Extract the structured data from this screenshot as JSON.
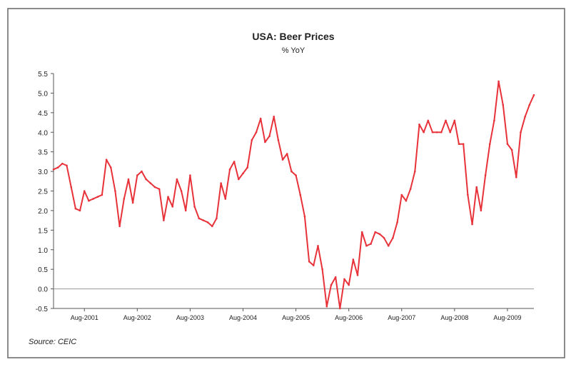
{
  "chart_data": {
    "type": "line",
    "title": "USA: Beer Prices",
    "subtitle": "% YoY",
    "source": "Source: CEIC",
    "ylim": [
      -0.5,
      5.5
    ],
    "y_ticks": [
      "5.5",
      "5.0",
      "4.5",
      "4.0",
      "3.5",
      "3.0",
      "2.5",
      "2.0",
      "1.5",
      "1.0",
      "0.5",
      "0.0",
      "-0.5"
    ],
    "x_ticks": [
      "Aug-2001",
      "Aug-2002",
      "Aug-2003",
      "Aug-2004",
      "Aug-2005",
      "Aug-2006",
      "Aug-2007",
      "Aug-2008",
      "Aug-2009"
    ],
    "x_start": "Jan-2001",
    "x_end": "Aug-2009",
    "grid": false,
    "colors": {
      "line": "#e8323a",
      "axis": "#555555",
      "zero_line": "#9a9a9a",
      "text": "#222222"
    },
    "series": [
      {
        "values": [
          3.05,
          3.1,
          3.2,
          3.15,
          2.6,
          2.05,
          2.0,
          2.5,
          2.25,
          2.3,
          2.35,
          2.4,
          3.3,
          3.1,
          2.5,
          1.6,
          2.3,
          2.8,
          2.2,
          2.9,
          3.0,
          2.8,
          2.7,
          2.6,
          2.55,
          1.75,
          2.35,
          2.1,
          2.8,
          2.5,
          2.0,
          2.9,
          2.1,
          1.8,
          1.75,
          1.7,
          1.6,
          1.8,
          2.7,
          2.3,
          3.05,
          3.25,
          2.8,
          2.95,
          3.1,
          3.8,
          4.0,
          4.35,
          3.75,
          3.9,
          4.4,
          3.8,
          3.3,
          3.45,
          3.0,
          2.9,
          2.4,
          1.85,
          0.7,
          0.6,
          1.1,
          0.5,
          -0.45,
          0.1,
          0.3,
          -0.5,
          0.25,
          0.1,
          0.75,
          0.35,
          1.45,
          1.1,
          1.15,
          1.45,
          1.4,
          1.3,
          1.1,
          1.3,
          1.7,
          2.4,
          2.25,
          2.55,
          3.0,
          4.2,
          4.0,
          4.3,
          4.0,
          4.0,
          4.0,
          4.3,
          4.0,
          4.3,
          3.7,
          3.7,
          2.4,
          1.65,
          2.6,
          2.0,
          2.9,
          3.7,
          4.3,
          5.3,
          4.7,
          3.7,
          3.55,
          2.85,
          4.0,
          4.4,
          4.7,
          4.95
        ]
      }
    ]
  }
}
